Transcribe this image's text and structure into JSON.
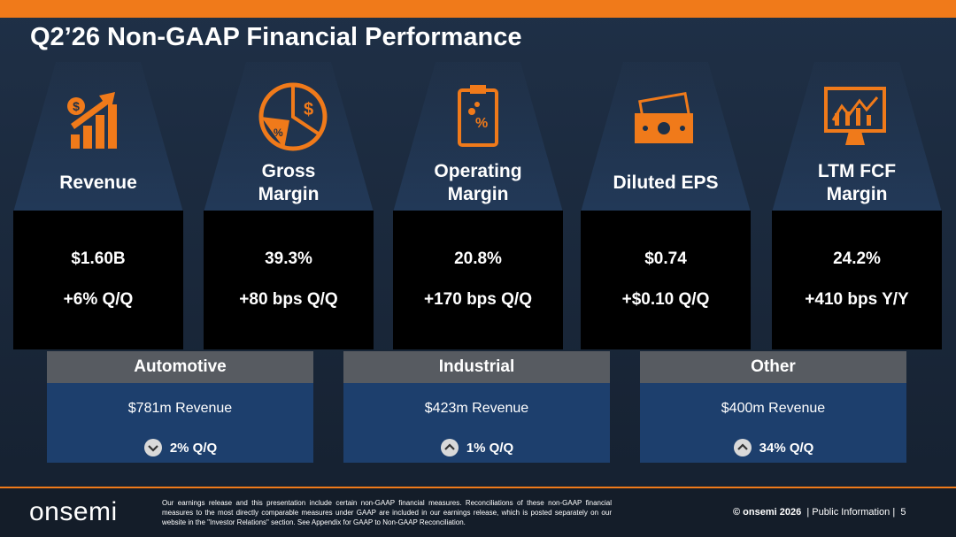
{
  "header": {
    "title": "Q2’26 Non-GAAP Financial Performance"
  },
  "metrics": [
    {
      "label": "Revenue",
      "value": "$1.60B",
      "change": "+6% Q/Q"
    },
    {
      "label": "Gross Margin",
      "value": "39.3%",
      "change": "+80 bps Q/Q"
    },
    {
      "label": "Operating Margin",
      "value": "20.8%",
      "change": "+170 bps Q/Q"
    },
    {
      "label": "Diluted EPS",
      "value": "$0.74",
      "change": "+$0.10 Q/Q"
    },
    {
      "label": "LTM FCF Margin",
      "value": "24.2%",
      "change": "+410 bps Y/Y"
    }
  ],
  "segments": [
    {
      "name": "Automotive",
      "revenue": "$781m Revenue",
      "change": "2% Q/Q",
      "direction": "down"
    },
    {
      "name": "Industrial",
      "revenue": "$423m Revenue",
      "change": "1% Q/Q",
      "direction": "up"
    },
    {
      "name": "Other",
      "revenue": "$400m Revenue",
      "change": "34% Q/Q",
      "direction": "up"
    }
  ],
  "footer": {
    "logo": "onsemi",
    "disclaimer": "Our earnings release and this presentation include certain non-GAAP financial measures. Reconciliations of these non-GAAP financial measures to the most directly comparable measures under GAAP are included in our earnings release, which is posted separately on our website in the \"Investor Relations\" section. See Appendix for GAAP to Non-GAAP Reconciliation.",
    "copyright": "© onsemi 2026",
    "classification": "Public Information",
    "page": "5"
  }
}
